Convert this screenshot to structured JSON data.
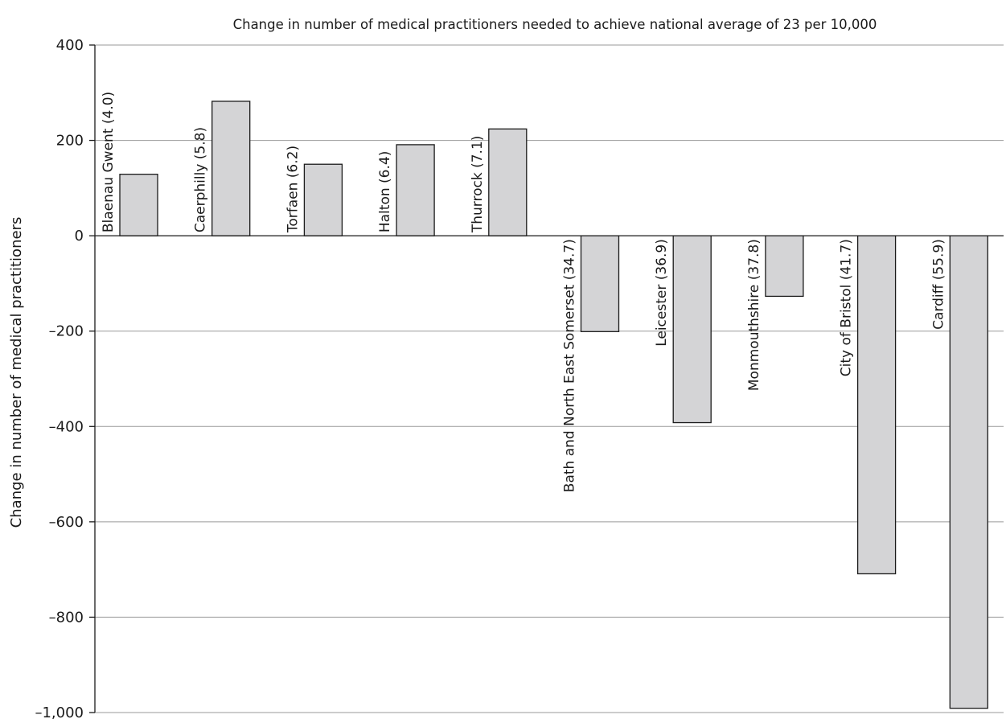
{
  "chart_data": {
    "type": "bar",
    "title": "Change in number of medical practitioners needed to achieve national average of 23 per 10,000",
    "xlabel": "",
    "ylabel": "Change in number of medical practitioners",
    "ylim": [
      -1000,
      400
    ],
    "yticks": [
      400,
      200,
      0,
      -200,
      -400,
      -600,
      -800,
      -1000
    ],
    "ytick_labels": [
      "400",
      "200",
      "0",
      "–200",
      "–400",
      "–600",
      "–800",
      "–1,000"
    ],
    "grid": true,
    "categories": [
      "Blaenau Gwent (4.0)",
      "Caerphilly (5.8)",
      "Torfaen (6.2)",
      "Halton (6.4)",
      "Thurrock (7.1)",
      "Bath and North East Somerset (34.7)",
      "Leicester (36.9)",
      "Monmouthshire (37.8)",
      "City of Bristol (41.7)",
      "Cardiff (55.9)"
    ],
    "values": [
      129,
      282,
      150,
      191,
      224,
      -201,
      -392,
      -127,
      -709,
      -991
    ],
    "bar_color": "#d4d4d6",
    "bar_stroke": "#1a1a1a",
    "grid_color": "#9a9a9a"
  }
}
